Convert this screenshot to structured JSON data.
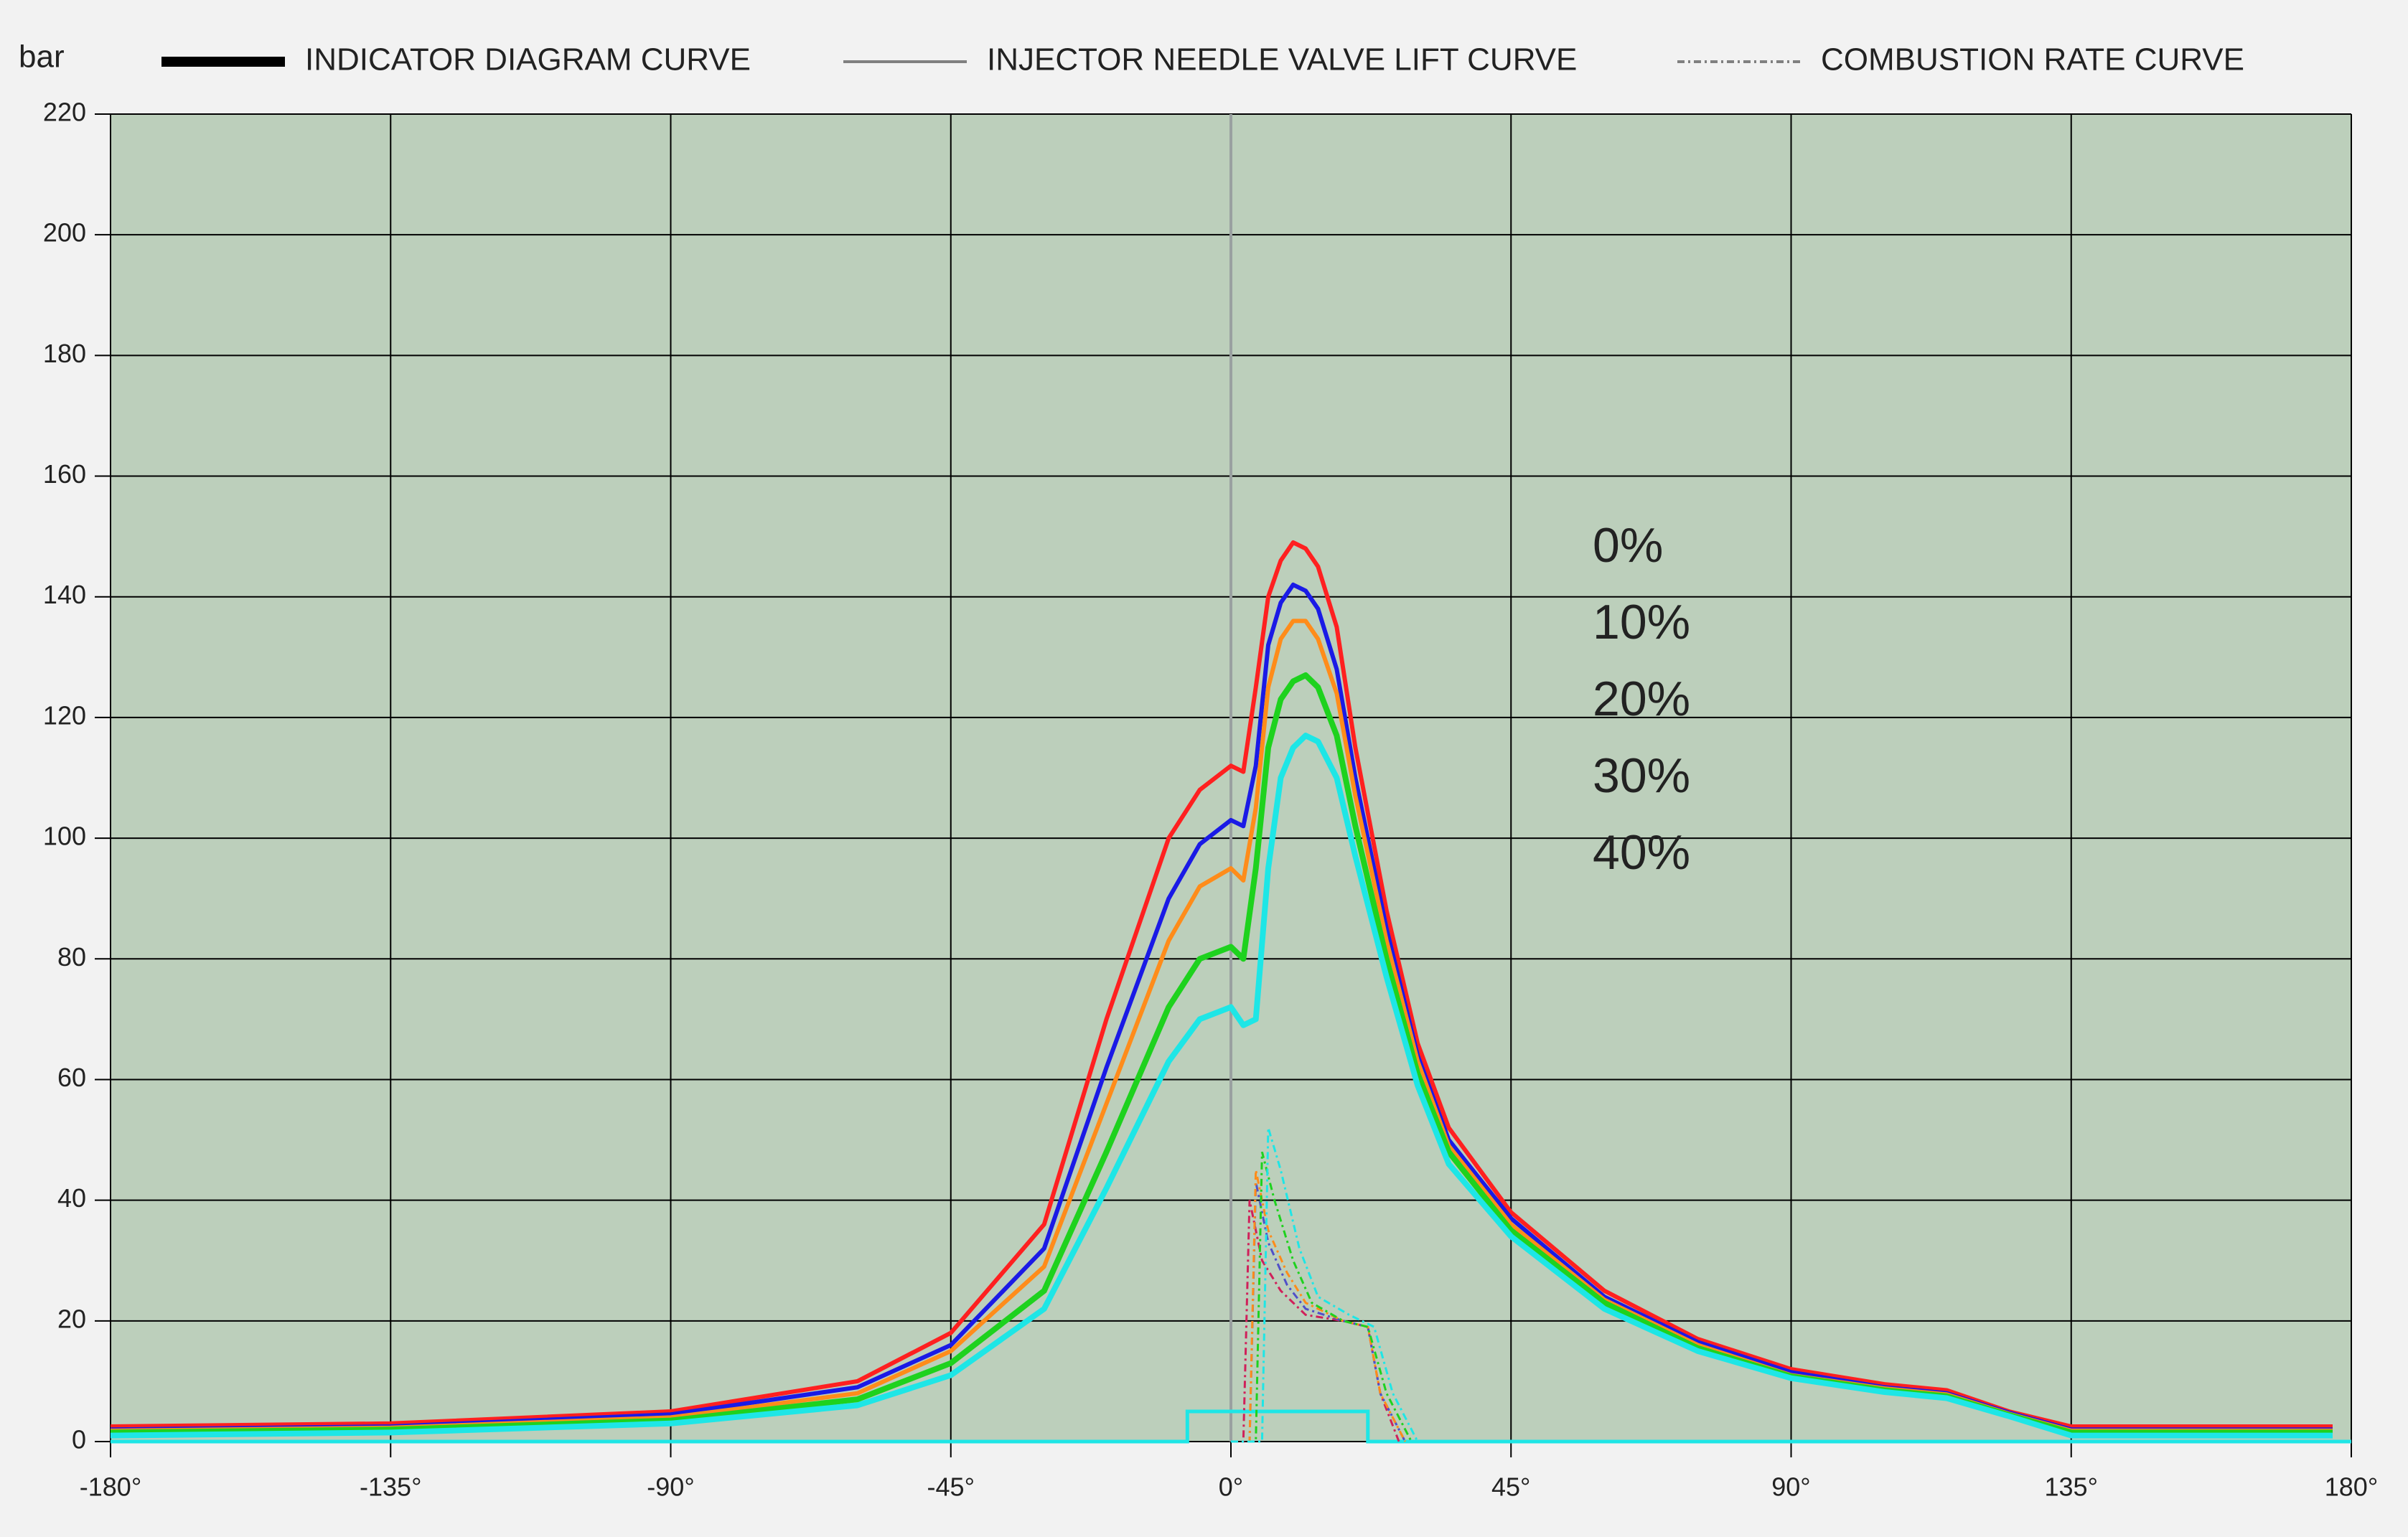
{
  "chart_data": {
    "type": "line",
    "y_label": "bar",
    "legend": [
      {
        "label": "INDICATOR DIAGRAM CURVE",
        "color": "#000000",
        "style": "thick"
      },
      {
        "label": "INJECTOR NEEDLE VALVE LIFT CURVE",
        "color": "#808080",
        "style": "thin"
      },
      {
        "label": "COMBUSTION RATE CURVE",
        "color": "#808080",
        "style": "dashed"
      }
    ],
    "x": [
      -180,
      -135,
      -90,
      -60,
      -45,
      -30,
      -20,
      -10,
      -5,
      0,
      2,
      4,
      6,
      8,
      10,
      12,
      14,
      17,
      20,
      25,
      30,
      35,
      45,
      60,
      75,
      90,
      105,
      115,
      125,
      135,
      177
    ],
    "series": [
      {
        "name": "0%",
        "color": "#ff2020",
        "width": 3,
        "values": [
          2.5,
          3,
          5,
          10,
          18,
          36,
          70,
          100,
          108,
          112,
          111,
          125,
          140,
          146,
          149,
          148,
          145,
          135,
          115,
          88,
          66,
          52,
          38,
          25,
          17,
          12,
          9.5,
          8.5,
          5,
          2.5,
          2.5
        ]
      },
      {
        "name": "10%",
        "color": "#1a1ae6",
        "width": 3,
        "values": [
          2,
          2.5,
          4.5,
          9,
          16,
          32,
          62,
          90,
          99,
          103,
          102,
          112,
          132,
          139,
          142,
          141,
          138,
          128,
          110,
          85,
          64,
          50,
          37,
          24,
          16.5,
          11.5,
          9,
          8,
          4.8,
          2,
          2
        ]
      },
      {
        "name": "20%",
        "color": "#ff8c1a",
        "width": 3,
        "values": [
          1.8,
          2.3,
          4,
          8,
          15,
          29,
          56,
          83,
          92,
          95,
          93,
          105,
          125,
          133,
          136,
          136,
          133,
          124,
          107,
          83,
          63,
          49,
          36,
          23.5,
          16,
          11,
          8.8,
          7.8,
          4.6,
          1.8,
          1.8
        ]
      },
      {
        "name": "30%",
        "color": "#1ed21e",
        "width": 4,
        "values": [
          1.5,
          2,
          3.5,
          7,
          13,
          25,
          48,
          72,
          80,
          82,
          80,
          95,
          115,
          123,
          126,
          127,
          125,
          117,
          102,
          80,
          61,
          48,
          35,
          23,
          15.5,
          10.8,
          8.5,
          7.5,
          4.4,
          1.5,
          1.5
        ]
      },
      {
        "name": "40%",
        "color": "#1ee6e6",
        "width": 4,
        "values": [
          1,
          1.5,
          3,
          6,
          11,
          22,
          42,
          63,
          70,
          72,
          69,
          70,
          95,
          110,
          115,
          117,
          116,
          110,
          97,
          77,
          59,
          46,
          34,
          22,
          15,
          10.5,
          8.2,
          7.2,
          4.2,
          1,
          1
        ]
      }
    ],
    "combustion_rate": [
      {
        "color": "#d0205a",
        "x": [
          0,
          2,
          3,
          5,
          8,
          12,
          18,
          22,
          24,
          27
        ],
        "values": [
          0,
          0,
          40,
          30,
          25,
          21,
          20,
          19,
          8,
          0
        ]
      },
      {
        "color": "#5050c8",
        "x": [
          0,
          3,
          4,
          6,
          9,
          12,
          18,
          22,
          24,
          28
        ],
        "values": [
          0,
          0,
          43,
          33,
          26,
          22,
          20,
          19,
          8,
          0
        ]
      },
      {
        "color": "#ff8c1a",
        "x": [
          0,
          3,
          4,
          6,
          9,
          12,
          18,
          22,
          24,
          28
        ],
        "values": [
          0,
          0,
          45,
          35,
          28,
          23,
          20,
          19,
          8,
          0
        ]
      },
      {
        "color": "#1ed21e",
        "x": [
          0,
          4,
          5,
          7,
          10,
          13,
          18,
          22,
          25,
          29
        ],
        "values": [
          0,
          0,
          48,
          40,
          30,
          23,
          20,
          19,
          8,
          0
        ]
      },
      {
        "color": "#1ee6e6",
        "x": [
          0,
          5,
          6,
          8,
          11,
          14,
          19,
          23,
          26,
          30
        ],
        "values": [
          0,
          0,
          52,
          45,
          32,
          24,
          21,
          19,
          8,
          0
        ]
      }
    ],
    "needle_lift": {
      "color": "#1ee6e6",
      "x": [
        -180,
        -7,
        -7,
        22,
        22,
        180
      ],
      "values": [
        0,
        0,
        5,
        5,
        0,
        0
      ]
    },
    "xlim": [
      -180,
      180
    ],
    "ylim": [
      0,
      220
    ],
    "xticks": [
      {
        "value": -180,
        "label": "-180°"
      },
      {
        "value": -135,
        "label": "-135°"
      },
      {
        "value": -90,
        "label": "-90°"
      },
      {
        "value": -45,
        "label": "-45°"
      },
      {
        "value": 0,
        "label": "0°"
      },
      {
        "value": 45,
        "label": "45°"
      },
      {
        "value": 90,
        "label": "90°"
      },
      {
        "value": 135,
        "label": "135°"
      },
      {
        "value": 180,
        "label": "180°"
      }
    ],
    "yticks": [
      0,
      20,
      40,
      60,
      80,
      100,
      120,
      140,
      160,
      180,
      200,
      220
    ],
    "grid": true
  }
}
